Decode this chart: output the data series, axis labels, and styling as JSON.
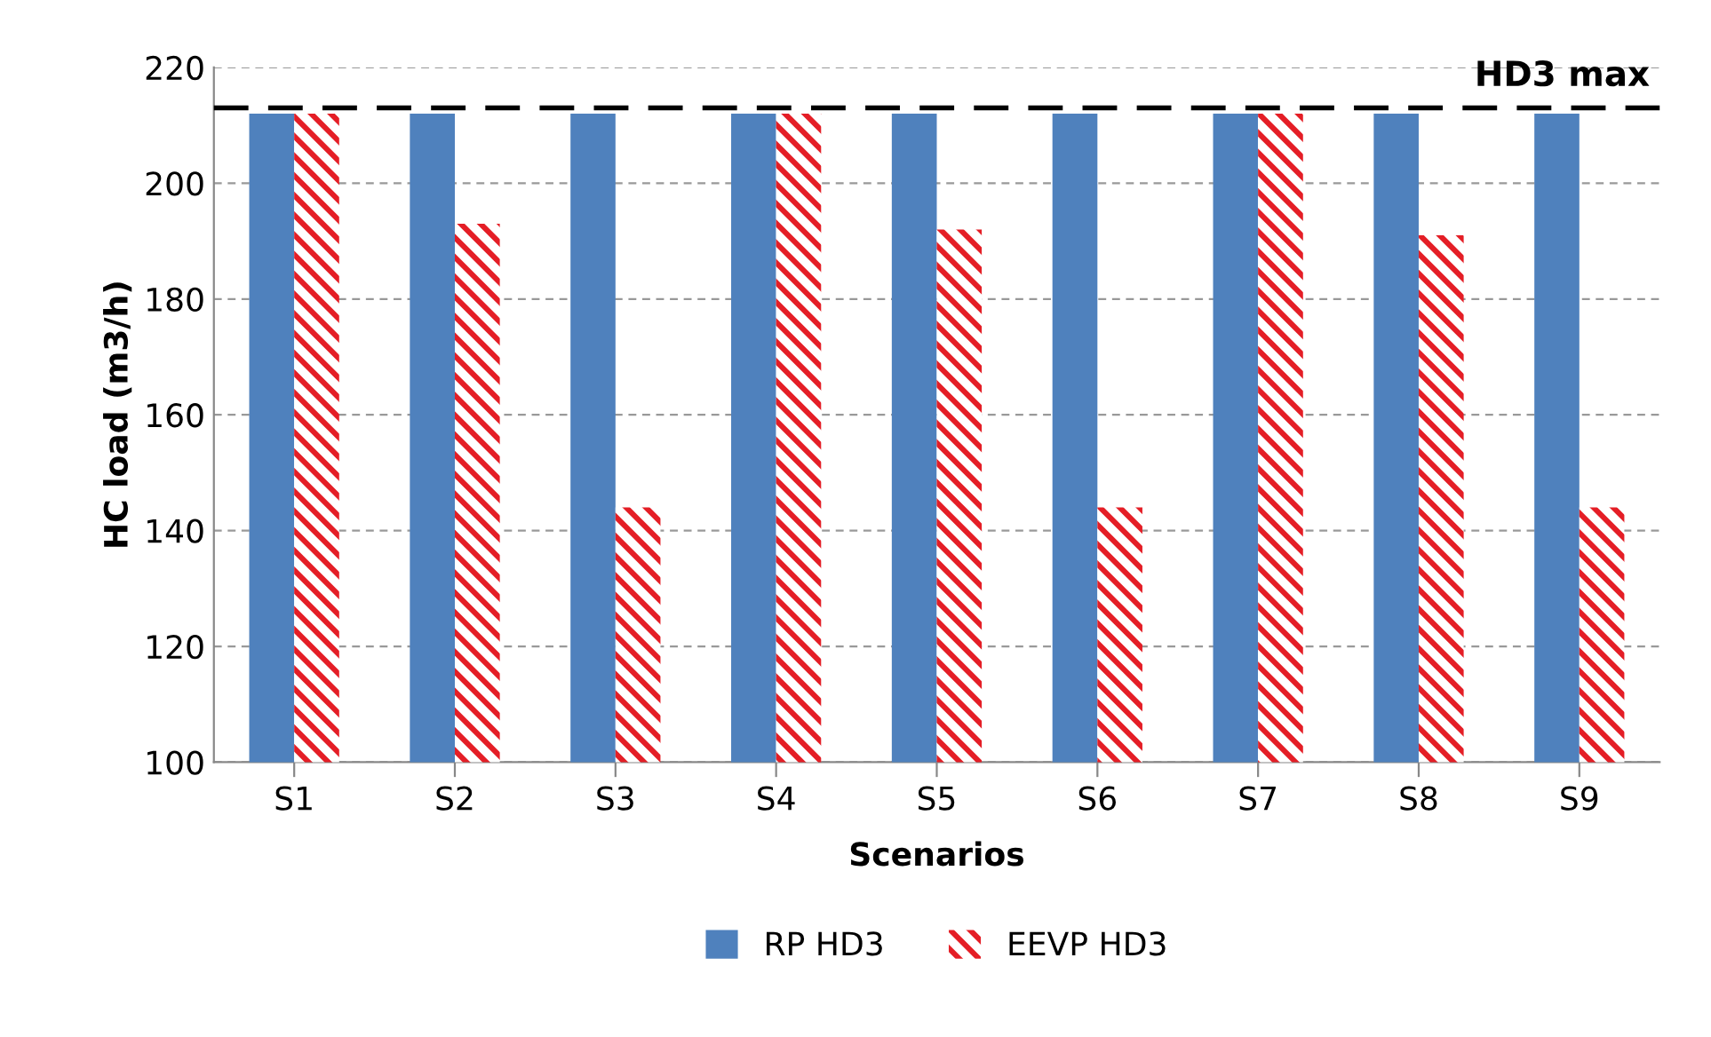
{
  "chart_data": {
    "type": "bar",
    "xlabel": "Scenarios",
    "ylabel": "HC load (m3/h)",
    "categories": [
      "S1",
      "S2",
      "S3",
      "S4",
      "S5",
      "S6",
      "S7",
      "S8",
      "S9"
    ],
    "series": [
      {
        "name": "RP HD3",
        "color": "#4f81bd",
        "values": [
          212,
          212,
          212,
          212,
          212,
          212,
          212,
          212,
          212
        ]
      },
      {
        "name": "EEVP HD3",
        "color": "#e41e26",
        "values": [
          212,
          193,
          144,
          212,
          192,
          144,
          212,
          191,
          144
        ]
      }
    ],
    "ylim": [
      100,
      220
    ],
    "yticks": [
      100,
      120,
      140,
      160,
      180,
      200,
      220
    ],
    "grid": "y",
    "legend": "bottom",
    "ref_lines": [
      {
        "axis": "y",
        "value": 213,
        "label": "HD3 max",
        "color": "#000000",
        "line_style": "dashed"
      }
    ]
  }
}
